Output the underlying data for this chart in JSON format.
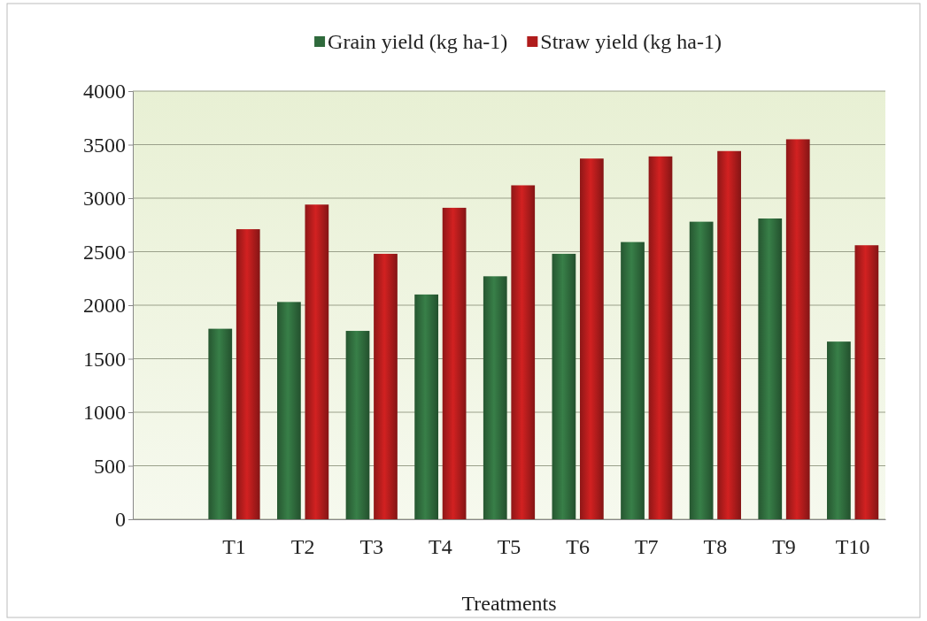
{
  "chart_data": {
    "type": "bar",
    "xlabel": "Treatments",
    "categories": [
      null,
      "T1",
      "T2",
      "T3",
      "T4",
      "T5",
      "T6",
      "T7",
      "T8",
      "T9",
      "T10"
    ],
    "series": [
      {
        "name": "Grain yield  (kg ha-1)",
        "color": "#2f6a3c",
        "values": [
          null,
          1780,
          2030,
          1760,
          2100,
          2270,
          2480,
          2590,
          2780,
          2810,
          1660
        ]
      },
      {
        "name": "Straw yield  (kg ha-1)",
        "color": "#b01c1c",
        "values": [
          null,
          2710,
          2940,
          2480,
          2910,
          3120,
          3370,
          3390,
          3440,
          3550,
          2560
        ]
      }
    ],
    "ylim": [
      0,
      4000
    ],
    "yticks": [
      0,
      500,
      1000,
      1500,
      2000,
      2500,
      3000,
      3500,
      4000
    ],
    "grid": "y",
    "legend": "top"
  }
}
